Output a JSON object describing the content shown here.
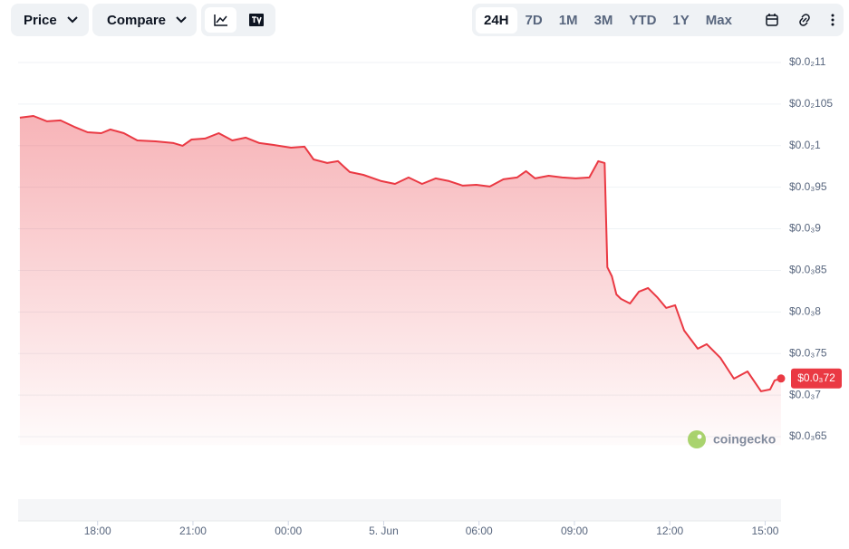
{
  "toolbar": {
    "price": "Price",
    "compare": "Compare",
    "ranges": [
      "24H",
      "7D",
      "1M",
      "3M",
      "YTD",
      "1Y",
      "Max"
    ],
    "active_range": "24H"
  },
  "chart_data": {
    "type": "line",
    "watermark": "coingecko",
    "color": "#ea3943",
    "x": [
      15.555,
      15.981,
      16.408,
      16.834,
      17.261,
      17.687,
      18.114,
      18.398,
      18.825,
      19.251,
      19.82,
      20.388,
      20.673,
      20.957,
      21.384,
      21.81,
      22.237,
      22.663,
      23.09,
      23.516,
      24.085,
      24.511,
      24.796,
      25.222,
      25.563,
      25.933,
      26.359,
      26.928,
      27.354,
      27.781,
      28.207,
      28.634,
      29.06,
      29.487,
      29.913,
      30.34,
      30.766,
      31.193,
      31.477,
      31.762,
      32.188,
      32.615,
      33.041,
      33.468,
      33.752,
      33.951,
      34.037,
      34.179,
      34.321,
      34.463,
      34.748,
      35.032,
      35.316,
      35.601,
      35.885,
      36.169,
      36.454,
      36.88,
      37.164,
      37.591,
      38.017,
      38.444,
      38.87,
      39.155,
      39.297,
      39.496
    ],
    "values": [
      0.0010336,
      0.0010357,
      0.0010292,
      0.0010303,
      0.0010227,
      0.0010161,
      0.001015,
      0.0010194,
      0.001015,
      0.0010063,
      0.0010052,
      0.0010031,
      0.0009998,
      0.0010074,
      0.0010085,
      0.001015,
      0.0010063,
      0.0010096,
      0.0010031,
      0.0010009,
      0.0009976,
      0.0009987,
      0.0009834,
      0.0009791,
      0.0009813,
      0.0009682,
      0.0009649,
      0.0009573,
      0.000954,
      0.0009617,
      0.000954,
      0.0009606,
      0.0009573,
      0.0009519,
      0.0009529,
      0.0009508,
      0.0009595,
      0.0009617,
      0.0009693,
      0.0009606,
      0.0009638,
      0.0009617,
      0.0009606,
      0.0009617,
      0.0009813,
      0.0009791,
      0.0008538,
      0.0008429,
      0.0008211,
      0.0008157,
      0.0008102,
      0.0008244,
      0.0008288,
      0.0008179,
      0.0008048,
      0.0008081,
      0.0007776,
      0.0007558,
      0.0007612,
      0.0007449,
      0.0007198,
      0.0007285,
      0.0007046,
      0.0007068,
      0.0007177,
      0.00072
    ],
    "current_price": {
      "value": 0.00072,
      "label": "$0.0₃72"
    },
    "xlim": [
      15.5,
      39.5
    ],
    "xticks": [
      {
        "value": 18,
        "label": "18:00"
      },
      {
        "value": 21,
        "label": "21:00"
      },
      {
        "value": 24,
        "label": "00:00"
      },
      {
        "value": 27,
        "label": "5. Jun"
      },
      {
        "value": 30,
        "label": "06:00"
      },
      {
        "value": 33,
        "label": "09:00"
      },
      {
        "value": 36,
        "label": "12:00"
      },
      {
        "value": 39,
        "label": "15:00"
      }
    ],
    "ylim": [
      0.00064,
      0.00112
    ],
    "yticks": [
      {
        "value": 0.0011,
        "label": "$0.0₂11"
      },
      {
        "value": 0.00105,
        "label": "$0.0₂105"
      },
      {
        "value": 0.001,
        "label": "$0.0₂1"
      },
      {
        "value": 0.00095,
        "label": "$0.0₃95"
      },
      {
        "value": 0.0009,
        "label": "$0.0₃9"
      },
      {
        "value": 0.00085,
        "label": "$0.0₃85"
      },
      {
        "value": 0.0008,
        "label": "$0.0₃8"
      },
      {
        "value": 0.00075,
        "label": "$0.0₃75"
      },
      {
        "value": 0.0007,
        "label": "$0.0₃7"
      },
      {
        "value": 0.00065,
        "label": "$0.0₃65"
      }
    ],
    "grid": true
  }
}
